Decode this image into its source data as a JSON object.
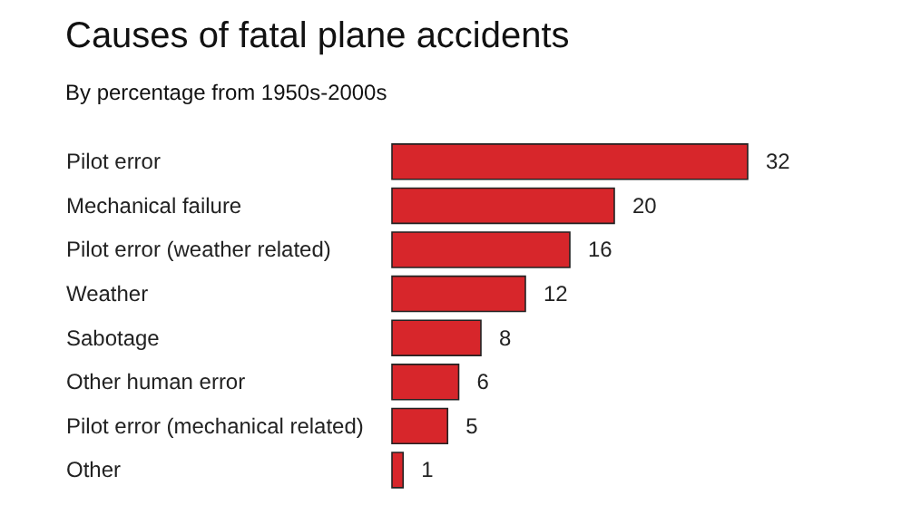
{
  "chart_data": {
    "type": "bar",
    "orientation": "horizontal",
    "title": "Causes of fatal plane accidents",
    "subtitle": "By percentage from 1950s-2000s",
    "categories": [
      "Pilot error",
      "Mechanical failure",
      "Pilot error (weather related)",
      "Weather",
      "Sabotage",
      "Other human error",
      "Pilot error (mechanical related)",
      "Other"
    ],
    "values": [
      32,
      20,
      16,
      12,
      8,
      6,
      5,
      1
    ],
    "color": "#d7262b",
    "data_labels": true
  }
}
